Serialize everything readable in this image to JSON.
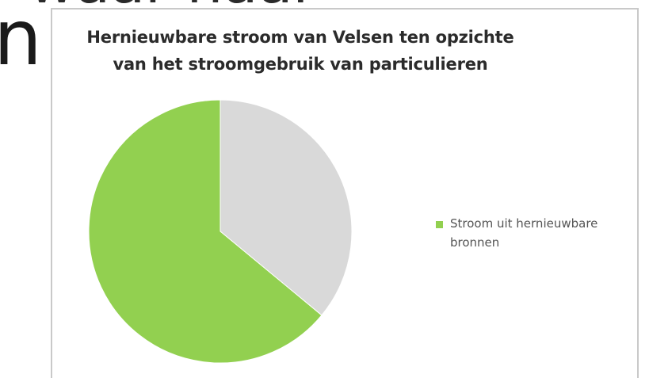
{
  "background_text": {
    "top": "waar naar",
    "left": "n"
  },
  "chart_data": {
    "type": "pie",
    "title_lines": [
      "Hernieuwbare stroom van Velsen ten opzichte",
      "van het stroomgebruik van particulieren"
    ],
    "slices": [
      {
        "label": "",
        "value": 36,
        "color": "#d9d9d9"
      },
      {
        "label": "Stroom uit hernieuwbare bronnen",
        "value": 64,
        "color": "#92d050"
      }
    ],
    "legend": {
      "position": "right",
      "entries": [
        {
          "label": "Stroom uit hernieuwbare bronnen",
          "color": "#92d050"
        }
      ]
    }
  }
}
